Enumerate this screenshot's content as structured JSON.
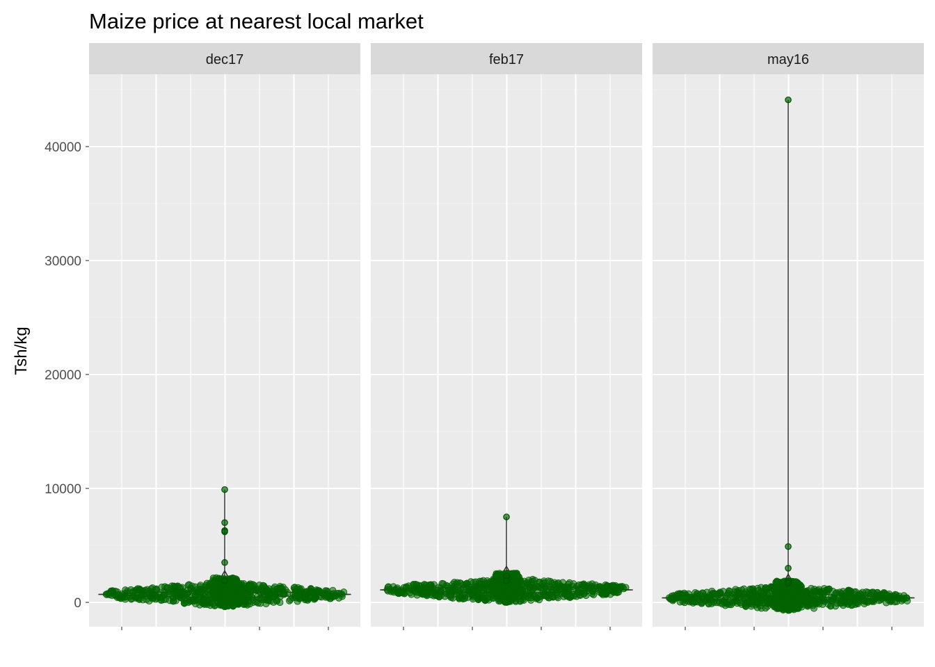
{
  "chart_data": {
    "type": "scatter",
    "title": "Maize price at nearest local market",
    "xlabel": "",
    "ylabel": "Tsh/kg",
    "ylim": [
      -2100,
      46200
    ],
    "y_ticks": [
      0,
      10000,
      20000,
      30000,
      40000
    ],
    "y_tick_labels": [
      "0",
      "10000",
      "20000",
      "30000",
      "40000"
    ],
    "grid": true,
    "legend": "none",
    "point_color": "#006400",
    "violin_color": "#333333",
    "panel_background": "#ebebeb",
    "strip_background": "#d9d9d9",
    "facets": [
      {
        "strip_label": "dec17",
        "median": 700,
        "max": 9900,
        "cluster_halfwidth": 0.44,
        "outliers": [
          9900,
          7000,
          6300,
          6200,
          3500,
          1900
        ]
      },
      {
        "strip_label": "feb17",
        "median": 1100,
        "max": 7500,
        "cluster_halfwidth": 0.44,
        "outliers": [
          7500,
          2300,
          1900
        ]
      },
      {
        "strip_label": "may16",
        "median": 400,
        "max": 44100,
        "cluster_halfwidth": 0.44,
        "outliers": [
          44100,
          4900,
          3000,
          1900,
          1700
        ]
      }
    ]
  }
}
